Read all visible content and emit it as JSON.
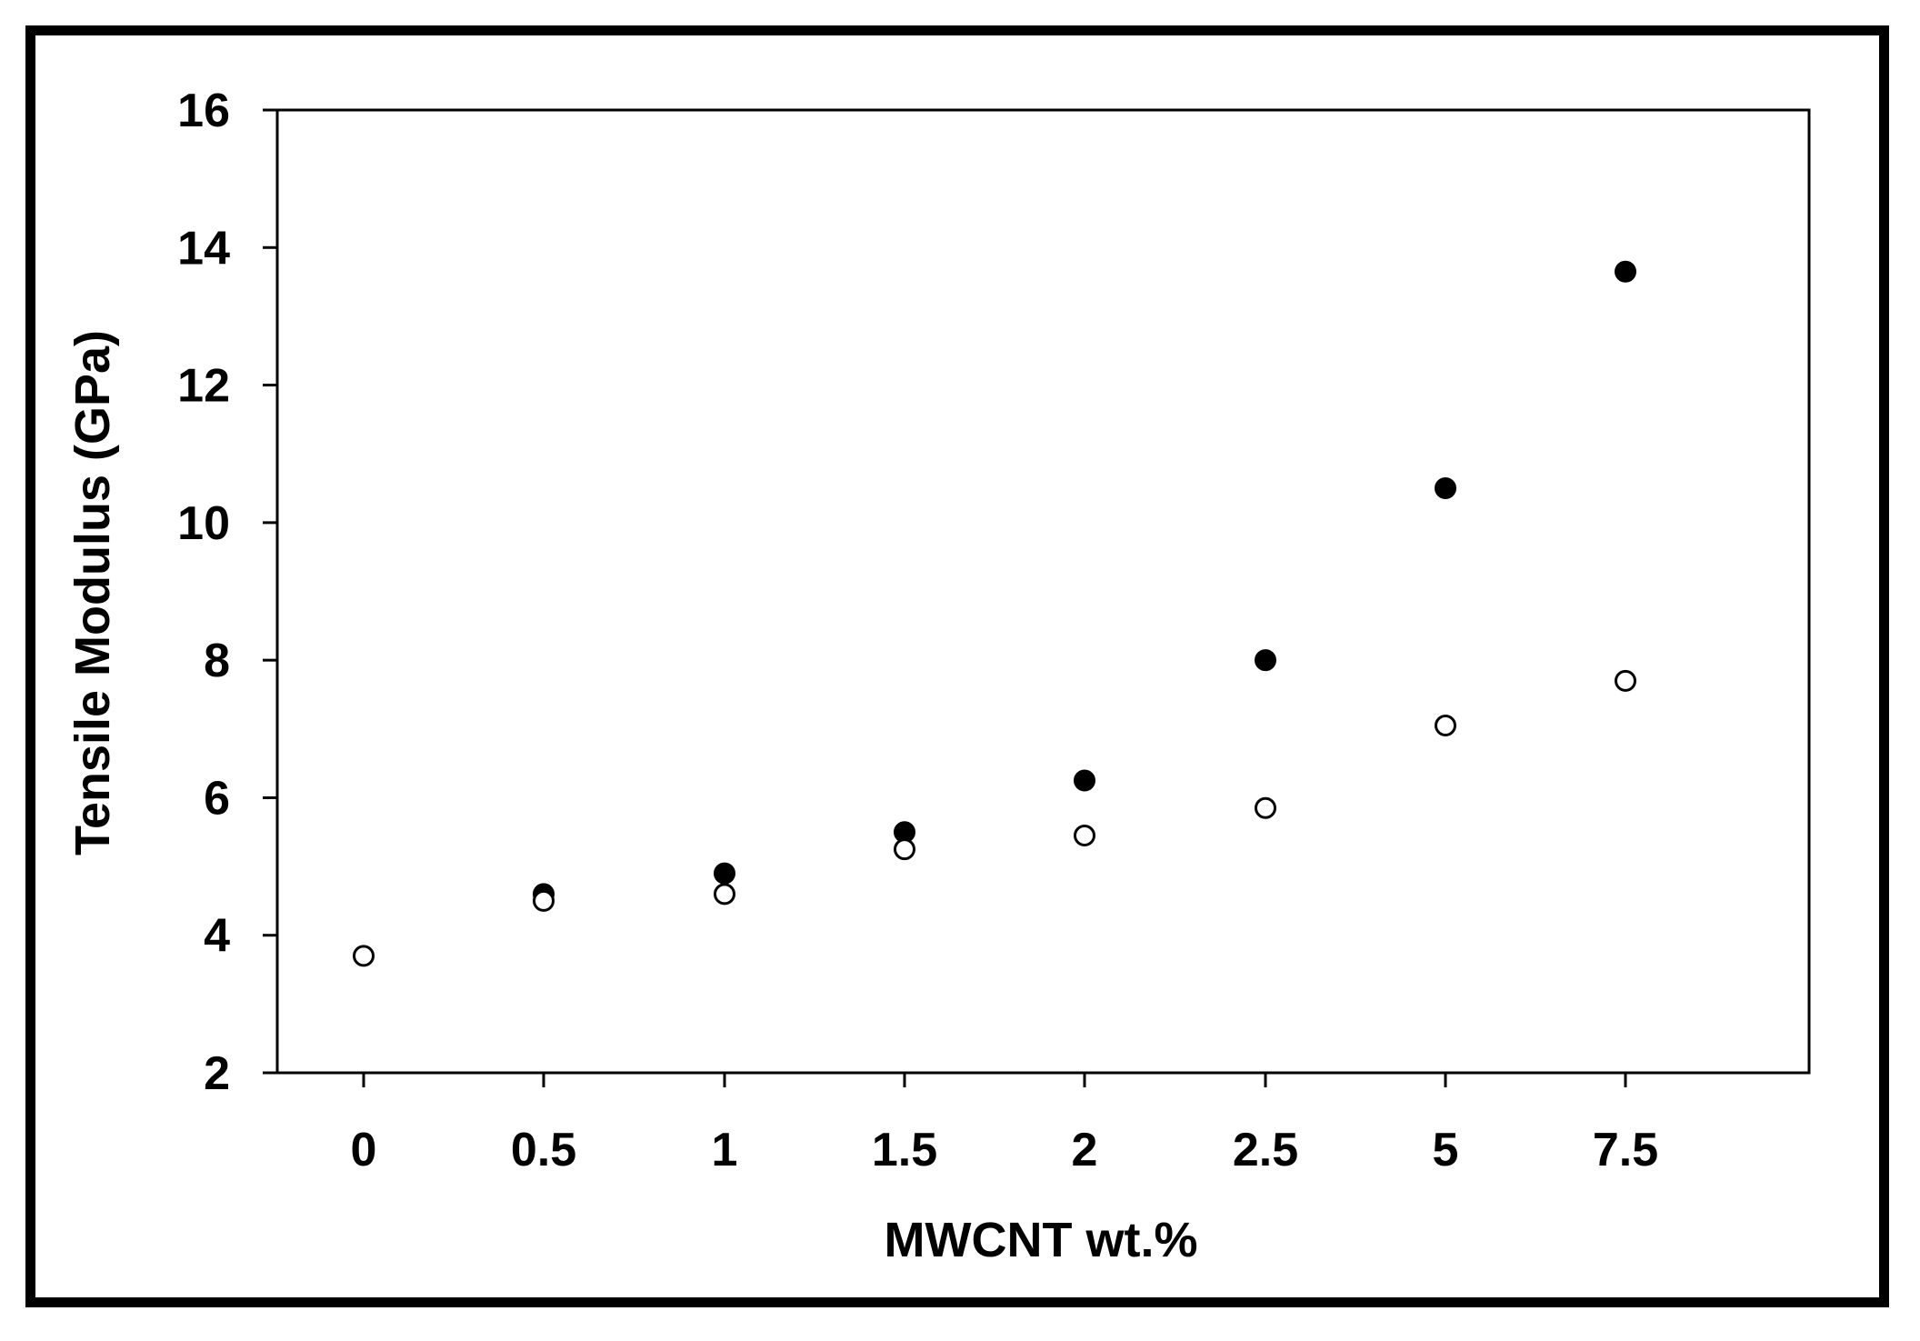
{
  "chart_data": {
    "type": "scatter",
    "title": "",
    "xlabel": "MWCNT wt.%",
    "ylabel": "Tensile Modulus (GPa)",
    "categories": [
      "0",
      "0.5",
      "1",
      "1.5",
      "2",
      "2.5",
      "5",
      "7.5"
    ],
    "x_scale": "categorical",
    "ylim": [
      2,
      16
    ],
    "yticks": [
      "2",
      "4",
      "6",
      "8",
      "10",
      "12",
      "14",
      "16"
    ],
    "grid": false,
    "legend": "none",
    "series": [
      {
        "marker": "filled-circle",
        "color": "#000000",
        "points": [
          {
            "x": "0.5",
            "y": 4.6
          },
          {
            "x": "1",
            "y": 4.9
          },
          {
            "x": "1.5",
            "y": 5.5
          },
          {
            "x": "2",
            "y": 6.25
          },
          {
            "x": "2.5",
            "y": 8.0
          },
          {
            "x": "5",
            "y": 10.5
          },
          {
            "x": "7.5",
            "y": 13.65
          }
        ]
      },
      {
        "marker": "open-circle",
        "color": "#000000",
        "points": [
          {
            "x": "0",
            "y": 3.7
          },
          {
            "x": "0.5",
            "y": 4.5
          },
          {
            "x": "1",
            "y": 4.6
          },
          {
            "x": "1.5",
            "y": 5.25
          },
          {
            "x": "2",
            "y": 5.45
          },
          {
            "x": "2.5",
            "y": 5.85
          },
          {
            "x": "5",
            "y": 7.05
          },
          {
            "x": "7.5",
            "y": 7.7
          }
        ]
      }
    ]
  }
}
